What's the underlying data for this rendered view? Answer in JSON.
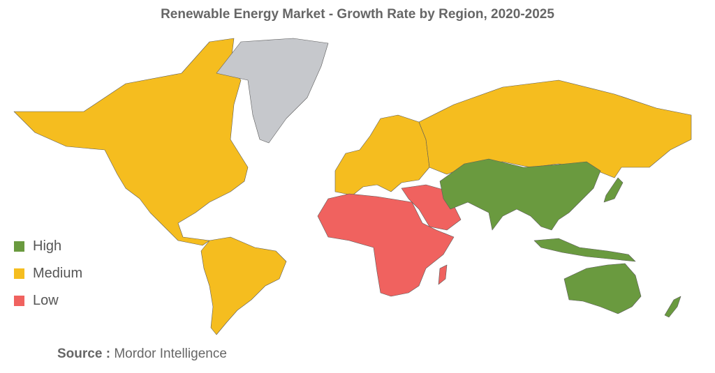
{
  "title": "Renewable Energy Market - Growth Rate by Region, 2020-2025",
  "legend": [
    {
      "key": "high",
      "label": "High",
      "color": "#6a9a3f"
    },
    {
      "key": "medium",
      "label": "Medium",
      "color": "#f5bd1f"
    },
    {
      "key": "low",
      "label": "Low",
      "color": "#f0625f"
    }
  ],
  "no_data_color": "#c6c8cc",
  "regions": {
    "north_america": "medium",
    "south_america": "medium",
    "europe": "medium",
    "russia": "medium",
    "greenland": "none",
    "africa": "low",
    "middle_east": "low",
    "asia_pacific": "high",
    "australia": "high"
  },
  "source": {
    "label": "Source :",
    "text": "Mordor Intelligence"
  }
}
